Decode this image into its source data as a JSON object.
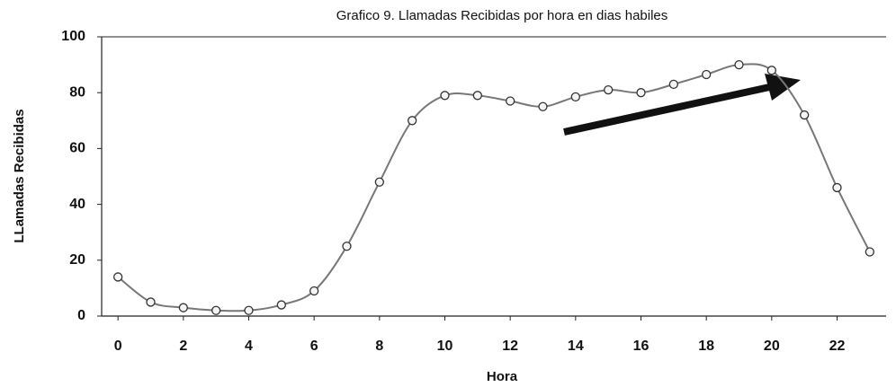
{
  "chart_data": {
    "type": "line",
    "title": "Grafico 9. Llamadas Recibidas por hora en dias habiles",
    "xlabel": "Hora",
    "ylabel": "LLamadas Recibidas",
    "x": [
      0,
      1,
      2,
      3,
      4,
      5,
      6,
      7,
      8,
      9,
      10,
      11,
      12,
      13,
      14,
      15,
      16,
      17,
      18,
      19,
      20,
      21,
      22,
      23
    ],
    "values": [
      14,
      5,
      3,
      2,
      2,
      4,
      9,
      25,
      48,
      70,
      79,
      79,
      77,
      75,
      78.5,
      81,
      80,
      83,
      86.5,
      90,
      88,
      72,
      46,
      23
    ],
    "color": "#777777",
    "xlim": [
      -0.5,
      23.5
    ],
    "xticks": [
      0,
      2,
      4,
      6,
      8,
      10,
      12,
      14,
      16,
      18,
      20,
      22
    ],
    "ylim": [
      0,
      100
    ],
    "yticks": [
      0,
      20,
      40,
      60,
      80,
      100
    ],
    "grid": false
  }
}
